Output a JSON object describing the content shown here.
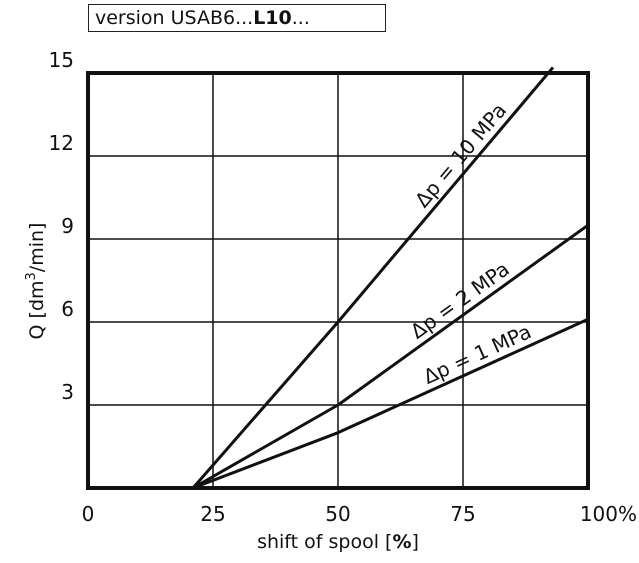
{
  "version": {
    "prefix": "version USAB6...",
    "bold": "L10",
    "suffix": "..."
  },
  "chart_data": {
    "type": "line",
    "title": "",
    "xlabel": {
      "text": "shift of spool [",
      "bold": "%",
      "end": "]"
    },
    "ylabel": {
      "prefix": "Q [dm",
      "sup": "3",
      "suffix": "/min]"
    },
    "xlim": [
      0,
      100
    ],
    "ylim": [
      0,
      15
    ],
    "grid": true,
    "x_ticks": [
      {
        "value": 0,
        "label": "0"
      },
      {
        "value": 25,
        "label": "25"
      },
      {
        "value": 50,
        "label": "50"
      },
      {
        "value": 75,
        "label": "75"
      },
      {
        "value": 100,
        "label": "100%"
      }
    ],
    "y_ticks": [
      {
        "value": 3,
        "label": "3"
      },
      {
        "value": 6,
        "label": "6"
      },
      {
        "value": 9,
        "label": "9"
      },
      {
        "value": 12,
        "label": "12"
      },
      {
        "value": 15,
        "label": "15"
      }
    ],
    "series": [
      {
        "name": "Δp = 10 MPa",
        "x": [
          21,
          50,
          93
        ],
        "y": [
          0,
          6,
          15.2
        ]
      },
      {
        "name": "Δp = 2 MPa",
        "x": [
          21,
          50,
          100
        ],
        "y": [
          0,
          3,
          9.5
        ]
      },
      {
        "name": "Δp = 1 MPa",
        "x": [
          21,
          50,
          100
        ],
        "y": [
          0,
          2,
          6.1
        ]
      }
    ],
    "line_color": "#111111"
  }
}
